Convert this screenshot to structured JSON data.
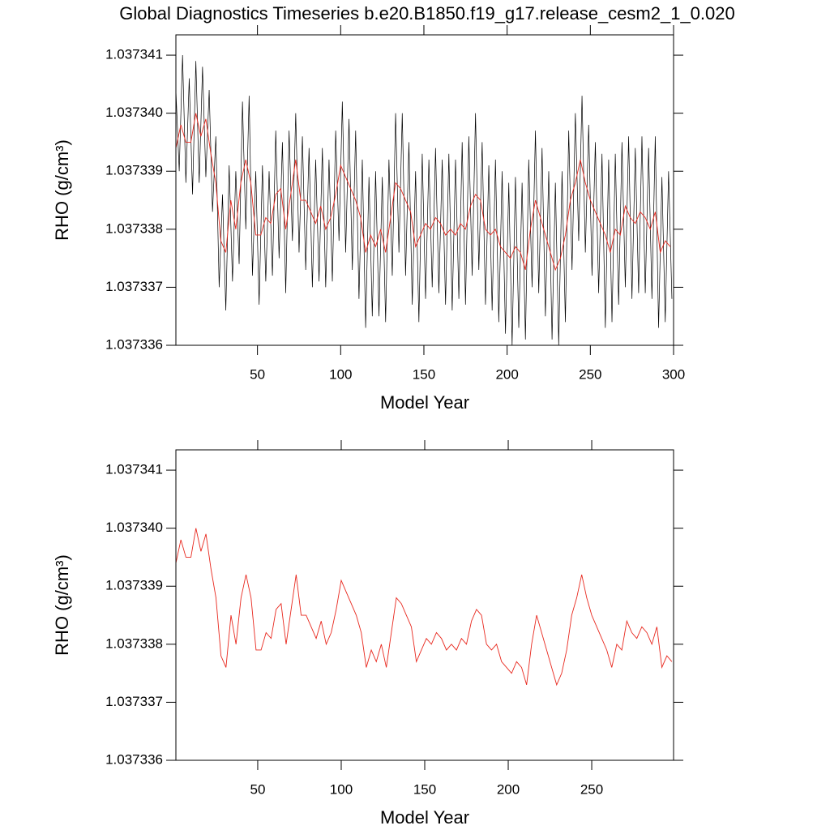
{
  "chart_data": [
    {
      "type": "line",
      "title": "Global Diagnostics Timeseries b.e20.B1850.f19_g17.release_cesm2_1_0.020",
      "x_label": "Model Year",
      "y_label": "RHO (g/cm³)",
      "xlim": [
        1,
        300
      ],
      "xticks": [
        50,
        100,
        150,
        200,
        250,
        300
      ],
      "ylim": [
        1.037336,
        1.03734135
      ],
      "yticks": [
        1.037336,
        1.037337,
        1.037338,
        1.037339,
        {
          "value": 1.03734,
          "label": "1.037340"
        },
        1.037341
      ],
      "series": [
        {
          "color": "#000000",
          "x": [
            1,
            3,
            5,
            7,
            9,
            11,
            13,
            15,
            17,
            19,
            21,
            23,
            25,
            27,
            29,
            31,
            33,
            35,
            37,
            39,
            41,
            43,
            45,
            47,
            49,
            51,
            53,
            55,
            57,
            59,
            61,
            63,
            65,
            67,
            69,
            71,
            73,
            75,
            77,
            79,
            81,
            83,
            85,
            87,
            89,
            91,
            93,
            95,
            97,
            99,
            101,
            103,
            105,
            107,
            109,
            111,
            113,
            115,
            117,
            119,
            121,
            123,
            125,
            127,
            129,
            131,
            133,
            135,
            137,
            139,
            141,
            143,
            145,
            147,
            149,
            151,
            153,
            155,
            157,
            159,
            161,
            163,
            165,
            167,
            169,
            171,
            173,
            175,
            177,
            179,
            181,
            183,
            185,
            187,
            189,
            191,
            193,
            195,
            197,
            199,
            201,
            203,
            205,
            207,
            209,
            211,
            213,
            215,
            217,
            219,
            221,
            223,
            225,
            227,
            229,
            231,
            233,
            235,
            237,
            239,
            241,
            243,
            245,
            247,
            249,
            251,
            253,
            255,
            257,
            259,
            261,
            263,
            265,
            267,
            269,
            271,
            273,
            275,
            277,
            279,
            281,
            283,
            285,
            287,
            289,
            291,
            293,
            295,
            297,
            299
          ],
          "values": [
            1.0373404,
            1.037339,
            1.037341,
            1.0373388,
            1.0373406,
            1.0373386,
            1.0373409,
            1.0373388,
            1.0373408,
            1.0373389,
            1.0373404,
            1.0373383,
            1.0373396,
            1.037337,
            1.0373386,
            1.0373366,
            1.0373391,
            1.0373371,
            1.037339,
            1.0373374,
            1.0373402,
            1.037338,
            1.0373403,
            1.0373372,
            1.037339,
            1.0373367,
            1.0373391,
            1.0373371,
            1.037339,
            1.0373372,
            1.0373397,
            1.0373375,
            1.0373395,
            1.0373369,
            1.0373397,
            1.0373378,
            1.03734,
            1.0373376,
            1.0373396,
            1.0373373,
            1.0373394,
            1.037337,
            1.0373392,
            1.0373371,
            1.0373394,
            1.037337,
            1.0373392,
            1.0373371,
            1.0373397,
            1.0373378,
            1.0373402,
            1.0373376,
            1.0373399,
            1.0373373,
            1.0373397,
            1.0373368,
            1.0373392,
            1.0373363,
            1.0373389,
            1.0373365,
            1.037339,
            1.0373365,
            1.0373389,
            1.0373364,
            1.0373392,
            1.0373372,
            1.03734,
            1.0373376,
            1.03734,
            1.0373372,
            1.0373395,
            1.0373367,
            1.037339,
            1.0373364,
            1.0373393,
            1.0373368,
            1.0373392,
            1.037337,
            1.0373394,
            1.0373369,
            1.0373392,
            1.0373367,
            1.0373393,
            1.0373366,
            1.0373392,
            1.0373368,
            1.0373395,
            1.0373367,
            1.0373396,
            1.0373372,
            1.03734,
            1.0373373,
            1.0373395,
            1.0373367,
            1.0373391,
            1.0373366,
            1.0373392,
            1.0373364,
            1.037339,
            1.0373362,
            1.0373388,
            1.037336,
            1.0373389,
            1.0373363,
            1.0373388,
            1.0373361,
            1.0373392,
            1.037337,
            1.0373397,
            1.0373369,
            1.0373394,
            1.0373365,
            1.037339,
            1.0373361,
            1.0373388,
            1.037336,
            1.037339,
            1.0373364,
            1.0373397,
            1.0373373,
            1.03734,
            1.0373378,
            1.0373403,
            1.0373376,
            1.0373398,
            1.0373372,
            1.0373395,
            1.0373369,
            1.0373393,
            1.0373363,
            1.0373392,
            1.0373364,
            1.0373393,
            1.0373367,
            1.0373395,
            1.037337,
            1.0373396,
            1.0373368,
            1.0373394,
            1.0373369,
            1.0373396,
            1.0373369,
            1.0373394,
            1.0373368,
            1.0373396,
            1.0373363,
            1.0373389,
            1.0373364,
            1.037339,
            1.0373368
          ]
        },
        {
          "color": "#e8281e",
          "x": [
            1,
            4,
            7,
            10,
            13,
            16,
            19,
            22,
            25,
            28,
            31,
            34,
            37,
            40,
            43,
            46,
            49,
            52,
            55,
            58,
            61,
            64,
            67,
            70,
            73,
            76,
            79,
            82,
            85,
            88,
            91,
            94,
            97,
            100,
            103,
            106,
            109,
            112,
            115,
            118,
            121,
            124,
            127,
            130,
            133,
            136,
            139,
            142,
            145,
            148,
            151,
            154,
            157,
            160,
            163,
            166,
            169,
            172,
            175,
            178,
            181,
            184,
            187,
            190,
            193,
            196,
            199,
            202,
            205,
            208,
            211,
            214,
            217,
            220,
            223,
            226,
            229,
            232,
            235,
            238,
            241,
            244,
            247,
            250,
            253,
            256,
            259,
            262,
            265,
            268,
            271,
            274,
            277,
            280,
            283,
            286,
            289,
            292,
            295,
            298
          ],
          "values": [
            1.0373394,
            1.0373398,
            1.0373395,
            1.0373395,
            1.03734,
            1.0373396,
            1.0373399,
            1.0373393,
            1.0373388,
            1.0373378,
            1.0373376,
            1.0373385,
            1.037338,
            1.0373388,
            1.0373392,
            1.0373388,
            1.0373379,
            1.0373379,
            1.0373382,
            1.0373381,
            1.0373386,
            1.0373387,
            1.037338,
            1.0373386,
            1.0373392,
            1.0373385,
            1.0373385,
            1.0373383,
            1.0373381,
            1.0373384,
            1.037338,
            1.0373382,
            1.0373386,
            1.0373391,
            1.0373389,
            1.0373387,
            1.0373385,
            1.0373382,
            1.0373376,
            1.0373379,
            1.0373377,
            1.037338,
            1.0373376,
            1.0373382,
            1.0373388,
            1.0373387,
            1.0373385,
            1.0373383,
            1.0373377,
            1.0373379,
            1.0373381,
            1.037338,
            1.0373382,
            1.0373381,
            1.0373379,
            1.037338,
            1.0373379,
            1.0373381,
            1.037338,
            1.0373384,
            1.0373386,
            1.0373385,
            1.037338,
            1.0373379,
            1.037338,
            1.0373377,
            1.0373376,
            1.0373375,
            1.0373377,
            1.0373376,
            1.0373373,
            1.037338,
            1.0373385,
            1.0373382,
            1.0373379,
            1.0373376,
            1.0373373,
            1.0373375,
            1.0373379,
            1.0373385,
            1.0373388,
            1.0373392,
            1.0373388,
            1.0373385,
            1.0373383,
            1.0373381,
            1.0373379,
            1.0373376,
            1.037338,
            1.0373379,
            1.0373384,
            1.0373382,
            1.0373381,
            1.0373383,
            1.0373382,
            1.037338,
            1.0373383,
            1.0373376,
            1.0373378,
            1.0373377
          ]
        }
      ]
    },
    {
      "type": "line",
      "x_label": "Model Year",
      "y_label": "RHO (g/cm³)",
      "xlim": [
        1,
        299
      ],
      "xticks": [
        50,
        100,
        150,
        200,
        250
      ],
      "ylim": [
        1.037336,
        1.03734135
      ],
      "yticks": [
        1.037336,
        1.037337,
        1.037338,
        1.037339,
        {
          "value": 1.03734,
          "label": "1.037340"
        },
        1.037341
      ],
      "series": [
        {
          "color": "#e8281e",
          "x": [
            1,
            4,
            7,
            10,
            13,
            16,
            19,
            22,
            25,
            28,
            31,
            34,
            37,
            40,
            43,
            46,
            49,
            52,
            55,
            58,
            61,
            64,
            67,
            70,
            73,
            76,
            79,
            82,
            85,
            88,
            91,
            94,
            97,
            100,
            103,
            106,
            109,
            112,
            115,
            118,
            121,
            124,
            127,
            130,
            133,
            136,
            139,
            142,
            145,
            148,
            151,
            154,
            157,
            160,
            163,
            166,
            169,
            172,
            175,
            178,
            181,
            184,
            187,
            190,
            193,
            196,
            199,
            202,
            205,
            208,
            211,
            214,
            217,
            220,
            223,
            226,
            229,
            232,
            235,
            238,
            241,
            244,
            247,
            250,
            253,
            256,
            259,
            262,
            265,
            268,
            271,
            274,
            277,
            280,
            283,
            286,
            289,
            292,
            295,
            298
          ],
          "values": [
            1.0373394,
            1.0373398,
            1.0373395,
            1.0373395,
            1.03734,
            1.0373396,
            1.0373399,
            1.0373393,
            1.0373388,
            1.0373378,
            1.0373376,
            1.0373385,
            1.037338,
            1.0373388,
            1.0373392,
            1.0373388,
            1.0373379,
            1.0373379,
            1.0373382,
            1.0373381,
            1.0373386,
            1.0373387,
            1.037338,
            1.0373386,
            1.0373392,
            1.0373385,
            1.0373385,
            1.0373383,
            1.0373381,
            1.0373384,
            1.037338,
            1.0373382,
            1.0373386,
            1.0373391,
            1.0373389,
            1.0373387,
            1.0373385,
            1.0373382,
            1.0373376,
            1.0373379,
            1.0373377,
            1.037338,
            1.0373376,
            1.0373382,
            1.0373388,
            1.0373387,
            1.0373385,
            1.0373383,
            1.0373377,
            1.0373379,
            1.0373381,
            1.037338,
            1.0373382,
            1.0373381,
            1.0373379,
            1.037338,
            1.0373379,
            1.0373381,
            1.037338,
            1.0373384,
            1.0373386,
            1.0373385,
            1.037338,
            1.0373379,
            1.037338,
            1.0373377,
            1.0373376,
            1.0373375,
            1.0373377,
            1.0373376,
            1.0373373,
            1.037338,
            1.0373385,
            1.0373382,
            1.0373379,
            1.0373376,
            1.0373373,
            1.0373375,
            1.0373379,
            1.0373385,
            1.0373388,
            1.0373392,
            1.0373388,
            1.0373385,
            1.0373383,
            1.0373381,
            1.0373379,
            1.0373376,
            1.037338,
            1.0373379,
            1.0373384,
            1.0373382,
            1.0373381,
            1.0373383,
            1.0373382,
            1.037338,
            1.0373383,
            1.0373376,
            1.0373378,
            1.0373377
          ]
        }
      ]
    }
  ]
}
